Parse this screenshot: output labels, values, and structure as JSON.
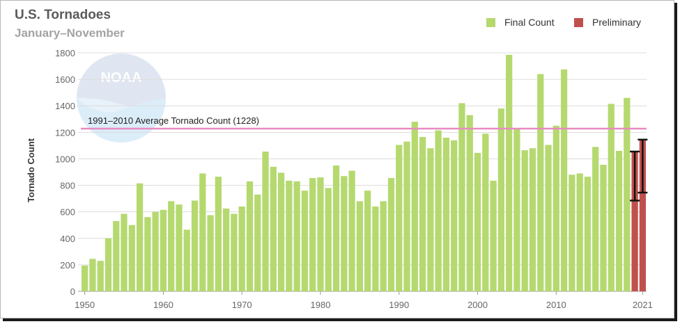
{
  "header": {
    "title": "U.S. Tornadoes",
    "subtitle": "January–November"
  },
  "watermark": {
    "text": "NOAA",
    "icon": "noaa-logo"
  },
  "legend": [
    {
      "label": "Final Count",
      "color": "#b5d96f"
    },
    {
      "label": "Preliminary",
      "color": "#c0504d"
    }
  ],
  "chart_data": {
    "type": "bar",
    "ylabel": "Tornado Count",
    "ylim": [
      0,
      1800
    ],
    "yticks": [
      0,
      200,
      400,
      600,
      800,
      1000,
      1200,
      1400,
      1600,
      1800
    ],
    "xlim": [
      1950,
      2021
    ],
    "xticks": [
      1950,
      1960,
      1970,
      1980,
      1990,
      2000,
      2010,
      2021
    ],
    "grid": true,
    "legend_position": "top-right",
    "average_line": {
      "label": "1991–2010 Average Tornado Count (1228)",
      "value": 1228,
      "color": "#e88bc0"
    },
    "series": [
      {
        "name": "Final Count",
        "color": "#b5d96f",
        "x": [
          1950,
          1951,
          1952,
          1953,
          1954,
          1955,
          1956,
          1957,
          1958,
          1959,
          1960,
          1961,
          1962,
          1963,
          1964,
          1965,
          1966,
          1967,
          1968,
          1969,
          1970,
          1971,
          1972,
          1973,
          1974,
          1975,
          1976,
          1977,
          1978,
          1979,
          1980,
          1981,
          1982,
          1983,
          1984,
          1985,
          1986,
          1987,
          1988,
          1989,
          1990,
          1991,
          1992,
          1993,
          1994,
          1995,
          1996,
          1997,
          1998,
          1999,
          2000,
          2001,
          2002,
          2003,
          2004,
          2005,
          2006,
          2007,
          2008,
          2009,
          2010,
          2011,
          2012,
          2013,
          2014,
          2015,
          2016,
          2017,
          2018,
          2019
        ],
        "values": [
          195,
          245,
          230,
          400,
          530,
          585,
          500,
          815,
          560,
          600,
          615,
          680,
          655,
          465,
          685,
          890,
          575,
          865,
          625,
          585,
          640,
          830,
          730,
          1055,
          940,
          895,
          835,
          830,
          760,
          855,
          860,
          780,
          950,
          870,
          910,
          680,
          760,
          640,
          680,
          855,
          1105,
          1130,
          1280,
          1165,
          1080,
          1215,
          1160,
          1140,
          1420,
          1330,
          1045,
          1190,
          835,
          1380,
          1785,
          1230,
          1065,
          1080,
          1640,
          1105,
          1250,
          1675,
          880,
          890,
          865,
          1090,
          955,
          1415,
          1060,
          1460
        ]
      },
      {
        "name": "Preliminary",
        "color": "#c0504d",
        "x": [
          2020,
          2021
        ],
        "values": [
          1055,
          1145
        ],
        "error_low": [
          685,
          745
        ],
        "error_high": [
          1055,
          1145
        ]
      }
    ]
  }
}
